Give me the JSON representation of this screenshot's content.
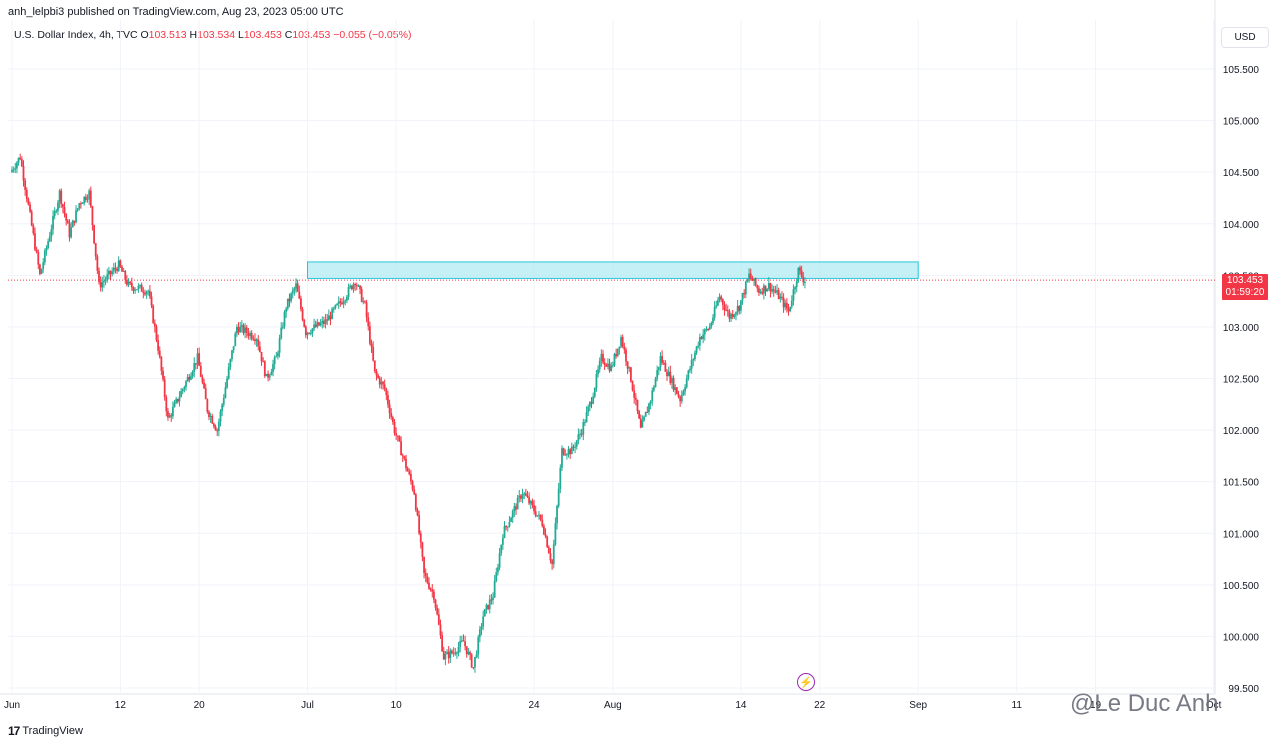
{
  "header": {
    "caption": "anh_lelpbi3 published on TradingView.com, Aug 23, 2023 05:00 UTC"
  },
  "legend": {
    "symbol": "U.S. Dollar Index, 4h, TVC",
    "o_label": "O",
    "o_value": "103.513",
    "h_label": "H",
    "h_value": "103.534",
    "l_label": "L",
    "l_value": "103.453",
    "c_label": "C",
    "c_value": "103.453",
    "change": "−0.055 (−0.05%)"
  },
  "currency_button": "USD",
  "price_badge": {
    "price": "103.453",
    "countdown": "01:59:20"
  },
  "branding": {
    "logo_mark": "17",
    "logo_text": "TradingView",
    "watermark": "@Le Duc Anh"
  },
  "colors": {
    "up": "#22ab94",
    "down": "#f23645",
    "zone_fill": "#b2ebf2",
    "zone_stroke": "#26c6da",
    "grid": "#f0f3fa",
    "axis_text": "#131722"
  },
  "chart_data": {
    "type": "candlestick",
    "symbol": "U.S. Dollar Index",
    "timeframe": "4h",
    "ylim": [
      99.5,
      105.7
    ],
    "y_ticks": [
      "105.500",
      "105.000",
      "104.500",
      "104.000",
      "103.500",
      "103.000",
      "102.500",
      "102.000",
      "101.500",
      "101.000",
      "100.500",
      "100.000",
      "99.500"
    ],
    "x_ticks": [
      {
        "label": "Jun",
        "day": 0
      },
      {
        "label": "12",
        "day": 11
      },
      {
        "label": "20",
        "day": 19
      },
      {
        "label": "Jul",
        "day": 30
      },
      {
        "label": "10",
        "day": 39
      },
      {
        "label": "24",
        "day": 53
      },
      {
        "label": "Aug",
        "day": 61
      },
      {
        "label": "14",
        "day": 74
      },
      {
        "label": "22",
        "day": 82
      },
      {
        "label": "Sep",
        "day": 92
      },
      {
        "label": "11",
        "day": 102
      },
      {
        "label": "19",
        "day": 110
      },
      {
        "label": "Oct",
        "day": 122
      }
    ],
    "last_price": 103.453,
    "resistance_zone": {
      "low": 103.47,
      "high": 103.63,
      "from_day": 30,
      "to_day": 92
    },
    "anchors": [
      {
        "day": 0,
        "price": 104.5
      },
      {
        "day": 1,
        "price": 104.65
      },
      {
        "day": 3,
        "price": 103.5
      },
      {
        "day": 5,
        "price": 104.3
      },
      {
        "day": 6,
        "price": 103.9
      },
      {
        "day": 7,
        "price": 104.2
      },
      {
        "day": 8,
        "price": 104.3
      },
      {
        "day": 9,
        "price": 103.4
      },
      {
        "day": 11,
        "price": 103.6
      },
      {
        "day": 12,
        "price": 103.4
      },
      {
        "day": 14,
        "price": 103.35
      },
      {
        "day": 15,
        "price": 102.8
      },
      {
        "day": 16,
        "price": 102.1
      },
      {
        "day": 18,
        "price": 102.5
      },
      {
        "day": 19,
        "price": 102.7
      },
      {
        "day": 20,
        "price": 102.2
      },
      {
        "day": 21,
        "price": 102.0
      },
      {
        "day": 23,
        "price": 103.0
      },
      {
        "day": 25,
        "price": 102.9
      },
      {
        "day": 26,
        "price": 102.5
      },
      {
        "day": 27,
        "price": 102.7
      },
      {
        "day": 28,
        "price": 103.2
      },
      {
        "day": 29,
        "price": 103.4
      },
      {
        "day": 30,
        "price": 102.95
      },
      {
        "day": 32,
        "price": 103.05
      },
      {
        "day": 34,
        "price": 103.3
      },
      {
        "day": 35,
        "price": 103.45
      },
      {
        "day": 36,
        "price": 103.2
      },
      {
        "day": 37,
        "price": 102.55
      },
      {
        "day": 38,
        "price": 102.4
      },
      {
        "day": 39,
        "price": 102.0
      },
      {
        "day": 40,
        "price": 101.7
      },
      {
        "day": 41,
        "price": 101.4
      },
      {
        "day": 42,
        "price": 100.6
      },
      {
        "day": 43,
        "price": 100.4
      },
      {
        "day": 44,
        "price": 99.8
      },
      {
        "day": 45,
        "price": 99.85
      },
      {
        "day": 46,
        "price": 99.95
      },
      {
        "day": 47,
        "price": 99.7
      },
      {
        "day": 48,
        "price": 100.2
      },
      {
        "day": 49,
        "price": 100.4
      },
      {
        "day": 50,
        "price": 101.0
      },
      {
        "day": 51,
        "price": 101.2
      },
      {
        "day": 52,
        "price": 101.4
      },
      {
        "day": 53,
        "price": 101.25
      },
      {
        "day": 54,
        "price": 101.1
      },
      {
        "day": 55,
        "price": 100.7
      },
      {
        "day": 56,
        "price": 101.8
      },
      {
        "day": 57,
        "price": 101.8
      },
      {
        "day": 58,
        "price": 102.0
      },
      {
        "day": 59,
        "price": 102.3
      },
      {
        "day": 60,
        "price": 102.7
      },
      {
        "day": 61,
        "price": 102.6
      },
      {
        "day": 62,
        "price": 102.9
      },
      {
        "day": 63,
        "price": 102.5
      },
      {
        "day": 64,
        "price": 102.0
      },
      {
        "day": 65,
        "price": 102.3
      },
      {
        "day": 66,
        "price": 102.7
      },
      {
        "day": 67,
        "price": 102.5
      },
      {
        "day": 68,
        "price": 102.3
      },
      {
        "day": 69,
        "price": 102.6
      },
      {
        "day": 70,
        "price": 102.9
      },
      {
        "day": 71,
        "price": 103.0
      },
      {
        "day": 72,
        "price": 103.3
      },
      {
        "day": 73,
        "price": 103.1
      },
      {
        "day": 74,
        "price": 103.2
      },
      {
        "day": 75,
        "price": 103.5
      },
      {
        "day": 76,
        "price": 103.35
      },
      {
        "day": 77,
        "price": 103.4
      },
      {
        "day": 78,
        "price": 103.3
      },
      {
        "day": 79,
        "price": 103.15
      },
      {
        "day": 80,
        "price": 103.55
      },
      {
        "day": 80.6,
        "price": 103.45
      }
    ]
  }
}
